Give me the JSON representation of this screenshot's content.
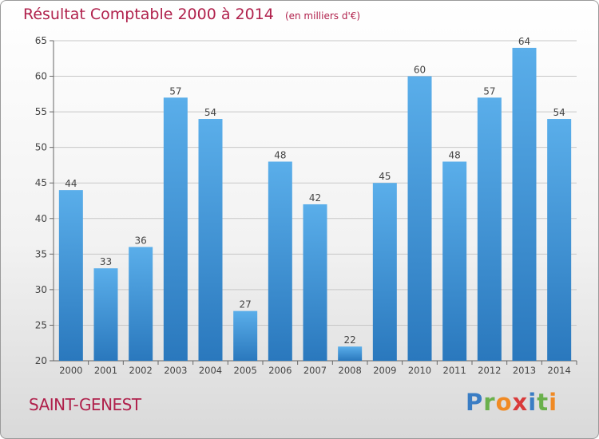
{
  "chart_data": {
    "type": "bar",
    "title": "Résultat Comptable 2000 à 2014",
    "unit": "(en milliers d'€)",
    "categories": [
      "2000",
      "2001",
      "2002",
      "2003",
      "2004",
      "2005",
      "2006",
      "2007",
      "2008",
      "2009",
      "2010",
      "2011",
      "2012",
      "2013",
      "2014"
    ],
    "values": [
      44,
      33,
      36,
      57,
      54,
      27,
      48,
      42,
      22,
      45,
      60,
      48,
      57,
      64,
      54
    ],
    "ylim": [
      20,
      65
    ],
    "yticks": [
      20,
      25,
      30,
      35,
      40,
      45,
      50,
      55,
      60,
      65
    ],
    "grid": true,
    "bar_color_top": "#5aaeea",
    "bar_color_bottom": "#2a78bd"
  },
  "footer": {
    "commune": "SAINT-GENEST",
    "logo_letters": [
      {
        "ch": "P",
        "color": "#3a7dc4"
      },
      {
        "ch": "r",
        "color": "#6ab04c"
      },
      {
        "ch": "o",
        "color": "#f08a24"
      },
      {
        "ch": "x",
        "color": "#d93a3a"
      },
      {
        "ch": "i",
        "color": "#3a7dc4"
      },
      {
        "ch": "t",
        "color": "#6ab04c"
      },
      {
        "ch": "i",
        "color": "#f08a24"
      }
    ]
  }
}
